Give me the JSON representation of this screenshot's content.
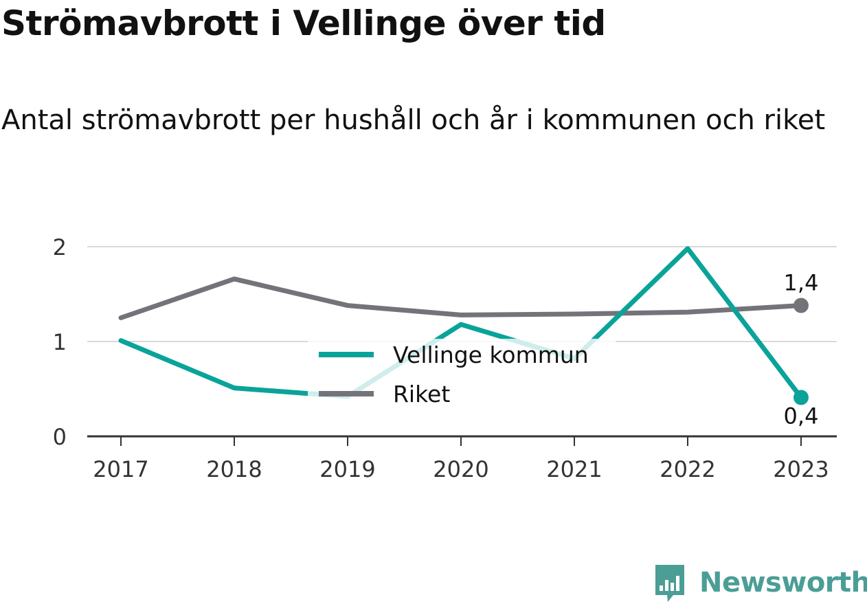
{
  "title": "Strömavbrott i Vellinge över tid",
  "subtitle": "Antal strömavbrott per hushåll och år i kommunen och riket",
  "brand": "Newsworthy",
  "colors": {
    "vellinge": "#0aa39a",
    "riket": "#74737a",
    "grid": "#d9d9d9",
    "axis": "#333333",
    "brand": "#4a9e95",
    "text": "#111111",
    "tick_text": "#333333"
  },
  "chart_data": {
    "type": "line",
    "x": [
      "2017",
      "2018",
      "2019",
      "2020",
      "2021",
      "2022",
      "2023"
    ],
    "yticks": [
      "0",
      "1",
      "2"
    ],
    "ylim": [
      0,
      2
    ],
    "grid": true,
    "legend_position": "center",
    "series": [
      {
        "name": "Vellinge kommun",
        "values": [
          1.01,
          0.51,
          0.42,
          1.18,
          0.82,
          1.98,
          0.41
        ],
        "end_label": "0,4"
      },
      {
        "name": "Riket",
        "values": [
          1.25,
          1.66,
          1.38,
          1.28,
          1.29,
          1.31,
          1.38
        ],
        "end_label": "1,4"
      }
    ]
  }
}
